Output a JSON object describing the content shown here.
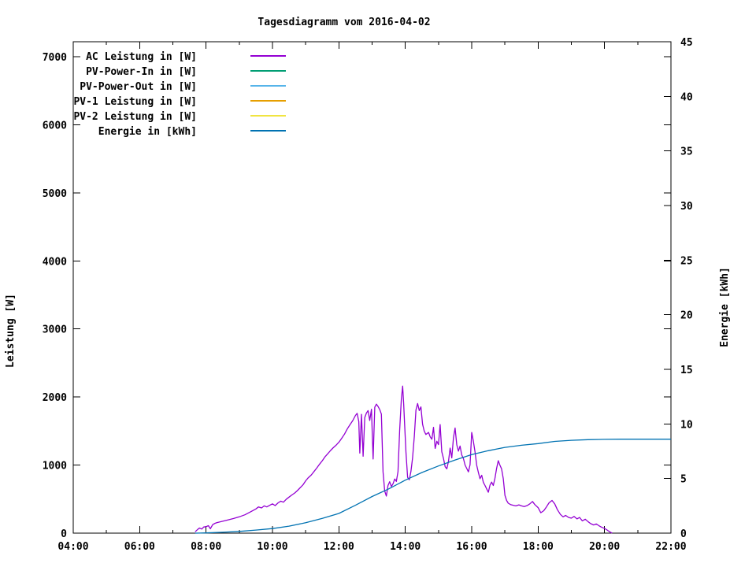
{
  "chart_data": {
    "type": "line",
    "title": "Tagesdiagramm vom 2016-04-02",
    "background": "#ffffff",
    "grid": false,
    "legend_position": "top-left",
    "x_axis": {
      "unit": "time of day",
      "range": [
        4,
        22
      ],
      "tick_values": [
        4,
        6,
        8,
        10,
        12,
        14,
        16,
        18,
        20,
        22
      ],
      "tick_labels": [
        "04:00",
        "06:00",
        "08:00",
        "10:00",
        "12:00",
        "14:00",
        "16:00",
        "18:00",
        "20:00",
        "22:00"
      ],
      "minor_tick_values": [
        5,
        7,
        9,
        11,
        13,
        15,
        17,
        19,
        21
      ]
    },
    "y_axis": {
      "label": "Leistung [W]",
      "range": [
        0,
        7220
      ],
      "ticks": [
        0,
        1000,
        2000,
        3000,
        4000,
        5000,
        6000,
        7000
      ]
    },
    "y2_axis": {
      "label": "Energie [kWh]",
      "range": [
        0,
        45
      ],
      "ticks": [
        0,
        5,
        10,
        15,
        20,
        25,
        30,
        35,
        40,
        45
      ]
    },
    "series": [
      {
        "name": "AC Leistung in [W]",
        "color": "#9400d3",
        "axis": "y1",
        "points": [
          [
            7.67,
            20
          ],
          [
            7.75,
            55
          ],
          [
            7.8,
            75
          ],
          [
            7.87,
            60
          ],
          [
            7.93,
            90
          ],
          [
            8.0,
            95
          ],
          [
            8.07,
            110
          ],
          [
            8.13,
            65
          ],
          [
            8.2,
            125
          ],
          [
            8.27,
            145
          ],
          [
            8.33,
            155
          ],
          [
            8.5,
            175
          ],
          [
            8.67,
            195
          ],
          [
            8.83,
            215
          ],
          [
            9.0,
            240
          ],
          [
            9.17,
            270
          ],
          [
            9.33,
            310
          ],
          [
            9.5,
            355
          ],
          [
            9.58,
            385
          ],
          [
            9.67,
            370
          ],
          [
            9.75,
            400
          ],
          [
            9.83,
            385
          ],
          [
            9.92,
            410
          ],
          [
            10.0,
            430
          ],
          [
            10.08,
            405
          ],
          [
            10.17,
            445
          ],
          [
            10.25,
            470
          ],
          [
            10.33,
            455
          ],
          [
            10.42,
            500
          ],
          [
            10.5,
            530
          ],
          [
            10.58,
            560
          ],
          [
            10.67,
            590
          ],
          [
            10.75,
            625
          ],
          [
            10.83,
            665
          ],
          [
            10.92,
            710
          ],
          [
            11.0,
            770
          ],
          [
            11.08,
            815
          ],
          [
            11.17,
            855
          ],
          [
            11.25,
            905
          ],
          [
            11.33,
            955
          ],
          [
            11.42,
            1015
          ],
          [
            11.5,
            1065
          ],
          [
            11.58,
            1120
          ],
          [
            11.67,
            1170
          ],
          [
            11.75,
            1215
          ],
          [
            11.83,
            1255
          ],
          [
            11.92,
            1295
          ],
          [
            12.0,
            1335
          ],
          [
            12.08,
            1390
          ],
          [
            12.17,
            1455
          ],
          [
            12.25,
            1530
          ],
          [
            12.33,
            1590
          ],
          [
            12.42,
            1655
          ],
          [
            12.5,
            1730
          ],
          [
            12.55,
            1760
          ],
          [
            12.6,
            1640
          ],
          [
            12.63,
            1175
          ],
          [
            12.68,
            1745
          ],
          [
            12.73,
            1130
          ],
          [
            12.78,
            1700
          ],
          [
            12.83,
            1765
          ],
          [
            12.88,
            1800
          ],
          [
            12.93,
            1655
          ],
          [
            12.98,
            1820
          ],
          [
            13.03,
            1090
          ],
          [
            13.08,
            1850
          ],
          [
            13.13,
            1895
          ],
          [
            13.18,
            1860
          ],
          [
            13.23,
            1815
          ],
          [
            13.28,
            1750
          ],
          [
            13.33,
            900
          ],
          [
            13.38,
            620
          ],
          [
            13.43,
            545
          ],
          [
            13.48,
            700
          ],
          [
            13.53,
            755
          ],
          [
            13.58,
            685
          ],
          [
            13.63,
            725
          ],
          [
            13.68,
            795
          ],
          [
            13.73,
            760
          ],
          [
            13.78,
            905
          ],
          [
            13.83,
            1510
          ],
          [
            13.88,
            1960
          ],
          [
            13.92,
            2160
          ],
          [
            13.95,
            1900
          ],
          [
            13.98,
            1600
          ],
          [
            14.02,
            1190
          ],
          [
            14.07,
            820
          ],
          [
            14.12,
            785
          ],
          [
            14.17,
            905
          ],
          [
            14.22,
            1105
          ],
          [
            14.27,
            1420
          ],
          [
            14.32,
            1810
          ],
          [
            14.37,
            1905
          ],
          [
            14.42,
            1800
          ],
          [
            14.47,
            1855
          ],
          [
            14.52,
            1600
          ],
          [
            14.57,
            1500
          ],
          [
            14.62,
            1450
          ],
          [
            14.7,
            1480
          ],
          [
            14.75,
            1415
          ],
          [
            14.8,
            1380
          ],
          [
            14.85,
            1555
          ],
          [
            14.9,
            1245
          ],
          [
            14.95,
            1350
          ],
          [
            15.0,
            1300
          ],
          [
            15.05,
            1595
          ],
          [
            15.1,
            1195
          ],
          [
            15.15,
            1095
          ],
          [
            15.2,
            975
          ],
          [
            15.25,
            945
          ],
          [
            15.3,
            1055
          ],
          [
            15.35,
            1250
          ],
          [
            15.4,
            1105
          ],
          [
            15.45,
            1400
          ],
          [
            15.5,
            1545
          ],
          [
            15.55,
            1300
          ],
          [
            15.6,
            1205
          ],
          [
            15.65,
            1280
          ],
          [
            15.7,
            1150
          ],
          [
            15.75,
            1095
          ],
          [
            15.8,
            1000
          ],
          [
            15.85,
            950
          ],
          [
            15.9,
            900
          ],
          [
            15.95,
            1005
          ],
          [
            16.0,
            1480
          ],
          [
            16.05,
            1350
          ],
          [
            16.1,
            1195
          ],
          [
            16.15,
            1000
          ],
          [
            16.2,
            895
          ],
          [
            16.25,
            800
          ],
          [
            16.3,
            850
          ],
          [
            16.35,
            745
          ],
          [
            16.4,
            700
          ],
          [
            16.45,
            650
          ],
          [
            16.5,
            600
          ],
          [
            16.55,
            705
          ],
          [
            16.6,
            750
          ],
          [
            16.65,
            700
          ],
          [
            16.7,
            805
          ],
          [
            16.75,
            950
          ],
          [
            16.8,
            1065
          ],
          [
            16.85,
            1000
          ],
          [
            16.9,
            945
          ],
          [
            16.95,
            800
          ],
          [
            17.0,
            555
          ],
          [
            17.05,
            480
          ],
          [
            17.1,
            440
          ],
          [
            17.17,
            420
          ],
          [
            17.25,
            410
          ],
          [
            17.33,
            400
          ],
          [
            17.42,
            415
          ],
          [
            17.5,
            400
          ],
          [
            17.58,
            390
          ],
          [
            17.67,
            405
          ],
          [
            17.75,
            430
          ],
          [
            17.83,
            465
          ],
          [
            17.9,
            420
          ],
          [
            18.0,
            375
          ],
          [
            18.08,
            300
          ],
          [
            18.17,
            330
          ],
          [
            18.25,
            385
          ],
          [
            18.33,
            445
          ],
          [
            18.42,
            480
          ],
          [
            18.5,
            430
          ],
          [
            18.58,
            345
          ],
          [
            18.67,
            275
          ],
          [
            18.75,
            240
          ],
          [
            18.83,
            260
          ],
          [
            18.92,
            230
          ],
          [
            19.0,
            220
          ],
          [
            19.08,
            245
          ],
          [
            19.17,
            210
          ],
          [
            19.25,
            230
          ],
          [
            19.33,
            180
          ],
          [
            19.42,
            205
          ],
          [
            19.5,
            170
          ],
          [
            19.58,
            140
          ],
          [
            19.67,
            120
          ],
          [
            19.75,
            135
          ],
          [
            19.83,
            110
          ],
          [
            19.92,
            85
          ],
          [
            20.0,
            70
          ],
          [
            20.08,
            45
          ],
          [
            20.17,
            15
          ],
          [
            20.23,
            0
          ]
        ]
      },
      {
        "name": "PV-Power-In in [W]",
        "color": "#009e73",
        "axis": "y1",
        "points": []
      },
      {
        "name": "PV-Power-Out in [W]",
        "color": "#56b4e9",
        "axis": "y1",
        "points": []
      },
      {
        "name": "PV-1 Leistung in [W]",
        "color": "#e69f00",
        "axis": "y1",
        "points": []
      },
      {
        "name": "PV-2 Leistung in [W]",
        "color": "#f0e442",
        "axis": "y1",
        "points": []
      },
      {
        "name": "Energie in [kWh]",
        "color": "#0072b2",
        "axis": "y2",
        "points": [
          [
            7.67,
            0
          ],
          [
            8.0,
            0.02
          ],
          [
            8.5,
            0.08
          ],
          [
            9.0,
            0.16
          ],
          [
            9.5,
            0.28
          ],
          [
            10.0,
            0.42
          ],
          [
            10.5,
            0.64
          ],
          [
            11.0,
            0.95
          ],
          [
            11.5,
            1.35
          ],
          [
            12.0,
            1.8
          ],
          [
            12.5,
            2.55
          ],
          [
            13.0,
            3.35
          ],
          [
            13.5,
            4.05
          ],
          [
            14.0,
            4.85
          ],
          [
            14.5,
            5.55
          ],
          [
            15.0,
            6.15
          ],
          [
            15.5,
            6.7
          ],
          [
            16.0,
            7.2
          ],
          [
            16.5,
            7.55
          ],
          [
            17.0,
            7.85
          ],
          [
            17.5,
            8.05
          ],
          [
            18.0,
            8.2
          ],
          [
            18.5,
            8.4
          ],
          [
            19.0,
            8.5
          ],
          [
            19.5,
            8.56
          ],
          [
            20.0,
            8.59
          ],
          [
            20.5,
            8.6
          ],
          [
            21.0,
            8.6
          ],
          [
            21.5,
            8.6
          ],
          [
            22.0,
            8.6
          ]
        ]
      }
    ]
  }
}
